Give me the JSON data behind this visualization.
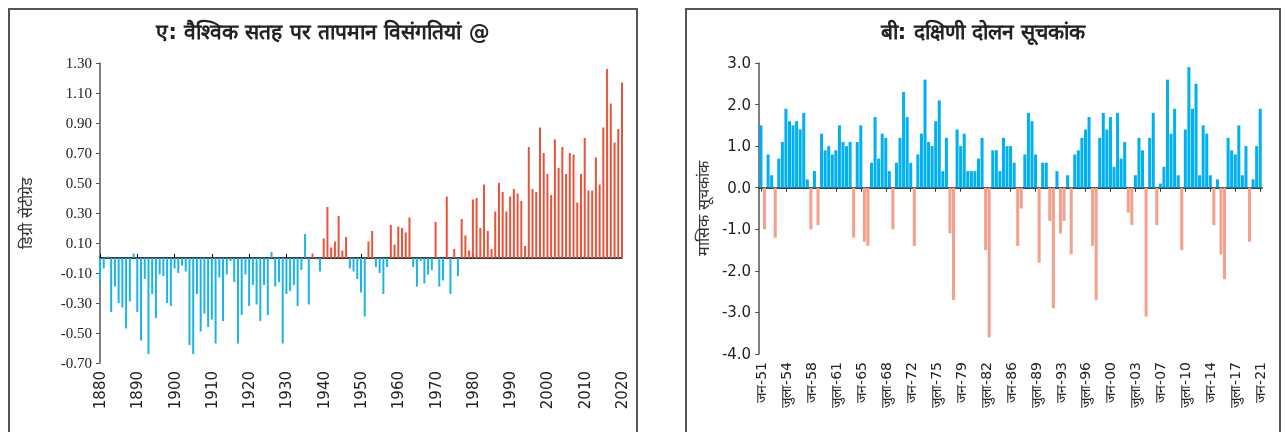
{
  "chart_data": [
    {
      "type": "bar",
      "title": "ए: वैश्विक सतह पर तापमान विसंगतियां @",
      "ylabel": "डिग्री सेंटीग्रेड",
      "x": [
        1880,
        1881,
        1882,
        1883,
        1884,
        1885,
        1886,
        1887,
        1888,
        1889,
        1890,
        1891,
        1892,
        1893,
        1894,
        1895,
        1896,
        1897,
        1898,
        1899,
        1900,
        1901,
        1902,
        1903,
        1904,
        1905,
        1906,
        1907,
        1908,
        1909,
        1910,
        1911,
        1912,
        1913,
        1914,
        1915,
        1916,
        1917,
        1918,
        1919,
        1920,
        1921,
        1922,
        1923,
        1924,
        1925,
        1926,
        1927,
        1928,
        1929,
        1930,
        1931,
        1932,
        1933,
        1934,
        1935,
        1936,
        1937,
        1938,
        1939,
        1940,
        1941,
        1942,
        1943,
        1944,
        1945,
        1946,
        1947,
        1948,
        1949,
        1950,
        1951,
        1952,
        1953,
        1954,
        1955,
        1956,
        1957,
        1958,
        1959,
        1960,
        1961,
        1962,
        1963,
        1964,
        1965,
        1966,
        1967,
        1968,
        1969,
        1970,
        1971,
        1972,
        1973,
        1974,
        1975,
        1976,
        1977,
        1978,
        1979,
        1980,
        1981,
        1982,
        1983,
        1984,
        1985,
        1986,
        1987,
        1988,
        1989,
        1990,
        1991,
        1992,
        1993,
        1994,
        1995,
        1996,
        1997,
        1998,
        1999,
        2000,
        2001,
        2002,
        2003,
        2004,
        2005,
        2006,
        2007,
        2008,
        2009,
        2010,
        2011,
        2012,
        2013,
        2014,
        2015,
        2016,
        2017,
        2018,
        2019,
        2020
      ],
      "values": [
        -0.15,
        -0.07,
        0.01,
        -0.36,
        -0.19,
        -0.3,
        -0.33,
        -0.47,
        -0.29,
        0.03,
        -0.36,
        -0.55,
        -0.14,
        -0.64,
        -0.24,
        -0.4,
        -0.11,
        -0.12,
        -0.3,
        -0.32,
        -0.07,
        -0.1,
        -0.05,
        -0.09,
        -0.58,
        -0.64,
        -0.24,
        -0.49,
        -0.37,
        -0.46,
        -0.41,
        -0.57,
        -0.13,
        -0.42,
        -0.11,
        -0.02,
        -0.16,
        -0.57,
        -0.38,
        -0.11,
        -0.32,
        -0.18,
        -0.31,
        -0.42,
        -0.18,
        -0.38,
        0.04,
        -0.19,
        -0.16,
        -0.57,
        -0.24,
        -0.22,
        -0.18,
        -0.32,
        -0.08,
        0.16,
        -0.31,
        0.03,
        -0.01,
        -0.09,
        0.13,
        0.34,
        0.07,
        0.11,
        0.28,
        0.05,
        0.14,
        -0.07,
        -0.09,
        -0.14,
        -0.23,
        -0.39,
        0.11,
        0.18,
        -0.06,
        -0.1,
        -0.24,
        -0.06,
        0.22,
        0.09,
        0.21,
        0.2,
        0.17,
        0.27,
        -0.06,
        -0.19,
        -0.02,
        -0.17,
        -0.11,
        -0.08,
        0.24,
        -0.19,
        -0.15,
        0.41,
        -0.24,
        0.06,
        -0.12,
        0.26,
        0.15,
        0.05,
        0.39,
        0.4,
        0.2,
        0.49,
        0.18,
        0.06,
        0.31,
        0.5,
        0.44,
        0.31,
        0.41,
        0.46,
        0.43,
        0.38,
        0.08,
        0.74,
        0.46,
        0.44,
        0.87,
        0.7,
        0.56,
        0.42,
        0.79,
        0.6,
        0.74,
        0.56,
        0.7,
        0.69,
        0.37,
        0.56,
        0.8,
        0.45,
        0.45,
        0.67,
        0.49,
        0.87,
        1.26,
        1.03,
        0.77,
        0.86,
        1.17
      ],
      "colors": [
        "#1ab4e6",
        "#1ab4e6",
        "#1ab4e6",
        "#1ab4e6",
        "#1ab4e6",
        "#1ab4e6",
        "#1ab4e6",
        "#1ab4e6",
        "#1ab4e6",
        "#1ab4e6",
        "#1ab4e6",
        "#1ab4e6",
        "#1ab4e6",
        "#1ab4e6",
        "#1ab4e6",
        "#1ab4e6",
        "#1ab4e6",
        "#1ab4e6",
        "#1ab4e6",
        "#1ab4e6",
        "#1ab4e6",
        "#1ab4e6",
        "#1ab4e6",
        "#1ab4e6",
        "#1ab4e6",
        "#1ab4e6",
        "#1ab4e6",
        "#1ab4e6",
        "#1ab4e6",
        "#1ab4e6",
        "#1ab4e6",
        "#1ab4e6",
        "#1ab4e6",
        "#1ab4e6",
        "#1ab4e6",
        "#1ab4e6",
        "#1ab4e6",
        "#1ab4e6",
        "#1ab4e6",
        "#1ab4e6",
        "#1ab4e6",
        "#1ab4e6",
        "#1ab4e6",
        "#1ab4e6",
        "#1ab4e6",
        "#1ab4e6",
        "#1ab4e6",
        "#1ab4e6",
        "#1ab4e6",
        "#1ab4e6",
        "#1ab4e6",
        "#1ab4e6",
        "#1ab4e6",
        "#1ab4e6",
        "#1ab4e6",
        "#1ab4e6",
        "#1ab4e6",
        "#e8533a",
        "#1ab4e6",
        "#1ab4e6",
        "#e8533a",
        "#e8533a",
        "#e8533a",
        "#e8533a",
        "#e8533a",
        "#e8533a",
        "#e8533a",
        "#1ab4e6",
        "#1ab4e6",
        "#1ab4e6",
        "#1ab4e6",
        "#1ab4e6",
        "#e8533a",
        "#e8533a",
        "#1ab4e6",
        "#1ab4e6",
        "#1ab4e6",
        "#1ab4e6",
        "#e8533a",
        "#e8533a",
        "#e8533a",
        "#e8533a",
        "#e8533a",
        "#e8533a",
        "#1ab4e6",
        "#1ab4e6",
        "#1ab4e6",
        "#1ab4e6",
        "#1ab4e6",
        "#1ab4e6",
        "#e8533a",
        "#1ab4e6",
        "#1ab4e6",
        "#e8533a",
        "#1ab4e6",
        "#e8533a",
        "#1ab4e6",
        "#e8533a",
        "#e8533a",
        "#e8533a",
        "#e8533a",
        "#e8533a",
        "#e8533a",
        "#e8533a",
        "#e8533a",
        "#e8533a",
        "#e8533a",
        "#e8533a",
        "#e8533a",
        "#e8533a",
        "#e8533a",
        "#e8533a",
        "#e8533a",
        "#e8533a",
        "#e8533a",
        "#e8533a",
        "#e8533a",
        "#e8533a",
        "#e8533a",
        "#e8533a",
        "#e8533a",
        "#e8533a",
        "#e8533a",
        "#e8533a",
        "#e8533a",
        "#e8533a",
        "#e8533a",
        "#e8533a",
        "#e8533a",
        "#e8533a",
        "#e8533a",
        "#e8533a",
        "#e8533a",
        "#e8533a",
        "#e8533a",
        "#e8533a",
        "#e8533a",
        "#e8533a",
        "#e8533a",
        "#e8533a",
        "#e8533a"
      ],
      "xlim": [
        1880,
        2020
      ],
      "xticks": [
        1880,
        1890,
        1900,
        1910,
        1920,
        1930,
        1940,
        1950,
        1960,
        1970,
        1980,
        1990,
        2000,
        2010,
        2020
      ],
      "ylim": [
        -0.7,
        1.3
      ],
      "yticks": [
        {
          "value": -0.7,
          "label": "-0.70"
        },
        {
          "value": -0.5,
          "label": "-0.50"
        },
        {
          "value": -0.3,
          "label": "-0.30"
        },
        {
          "value": -0.1,
          "label": "-0.10"
        },
        {
          "value": 0.1,
          "label": "0.10"
        },
        {
          "value": 0.3,
          "label": "0.30"
        },
        {
          "value": 0.5,
          "label": "0.50"
        },
        {
          "value": 0.7,
          "label": "0.70"
        },
        {
          "value": 0.9,
          "label": "0.90"
        },
        {
          "value": 1.1,
          "label": "1.10"
        },
        {
          "value": 1.3,
          "label": "1.30"
        }
      ],
      "tick_labels": true
    },
    {
      "type": "bar",
      "title": "बी: दक्षिणी दोलन सूचकांक",
      "ylabel": "मासिक सूचकांक",
      "categories": [
        "जन-51",
        null,
        null,
        null,
        null,
        null,
        null,
        "जुला-54",
        null,
        null,
        null,
        null,
        null,
        null,
        "जन-58",
        null,
        null,
        null,
        null,
        null,
        null,
        "जुला-61",
        null,
        null,
        null,
        null,
        null,
        null,
        "जन-65",
        null,
        null,
        null,
        null,
        null,
        null,
        "जुला-68",
        null,
        null,
        null,
        null,
        null,
        null,
        "जन-72",
        null,
        null,
        null,
        null,
        null,
        null,
        "जुला-75",
        null,
        null,
        null,
        null,
        null,
        null,
        "जन-79",
        null,
        null,
        null,
        null,
        null,
        null,
        "जुला-82",
        null,
        null,
        null,
        null,
        null,
        null,
        "जन-86",
        null,
        null,
        null,
        null,
        null,
        null,
        "जुला-89",
        null,
        null,
        null,
        null,
        null,
        null,
        "जन-93",
        null,
        null,
        null,
        null,
        null,
        null,
        "जुला-96",
        null,
        null,
        null,
        null,
        null,
        null,
        "जन-00",
        null,
        null,
        null,
        null,
        null,
        null,
        "जुला-03",
        null,
        null,
        null,
        null,
        null,
        null,
        "जन-07",
        null,
        null,
        null,
        null,
        null,
        null,
        "जुला-10",
        null,
        null,
        null,
        null,
        null,
        null,
        "जन-14",
        null,
        null,
        null,
        null,
        null,
        null,
        "जुला-17",
        null,
        null,
        null,
        null,
        null,
        null,
        "जन-21"
      ],
      "values": [
        1.5,
        -1.0,
        0.8,
        0.3,
        -1.2,
        0.7,
        1.1,
        1.9,
        1.6,
        1.5,
        1.6,
        1.4,
        1.8,
        0.2,
        -1.0,
        0.4,
        -0.9,
        1.3,
        0.9,
        1.0,
        0.8,
        0.9,
        1.5,
        1.1,
        1.0,
        1.1,
        -1.2,
        1.1,
        1.5,
        -1.3,
        -1.4,
        0.6,
        1.7,
        0.7,
        1.3,
        1.2,
        0.4,
        -1.0,
        0.6,
        1.2,
        2.3,
        1.7,
        0.6,
        -1.4,
        0.8,
        1.3,
        2.6,
        1.1,
        1.0,
        1.6,
        2.1,
        0.4,
        1.2,
        -1.1,
        -2.7,
        1.4,
        1.0,
        1.3,
        0.4,
        0.4,
        0.4,
        0.7,
        1.2,
        -1.5,
        -3.6,
        0.9,
        0.9,
        0.4,
        1.2,
        1.0,
        1.0,
        0.6,
        -1.4,
        -0.5,
        0.8,
        1.8,
        1.6,
        0.8,
        -1.8,
        0.6,
        0.6,
        -0.8,
        -2.9,
        0.4,
        -1.1,
        -0.8,
        0.3,
        -1.6,
        0.8,
        0.9,
        1.2,
        1.4,
        1.7,
        -1.4,
        -2.7,
        1.2,
        1.8,
        1.4,
        1.7,
        0.5,
        1.8,
        0.7,
        1.1,
        -0.6,
        -0.9,
        0.3,
        1.2,
        0.9,
        -3.1,
        1.2,
        1.8,
        -0.9,
        0.1,
        0.5,
        2.6,
        1.3,
        1.9,
        0.3,
        -1.5,
        1.4,
        2.9,
        1.9,
        2.5,
        0.3,
        1.5,
        1.3,
        0.3,
        -0.9,
        0.2,
        -1.6,
        -2.2,
        1.2,
        0.9,
        0.8,
        1.5,
        0.3,
        1.0,
        -1.3,
        0.2,
        1.0,
        1.9
      ],
      "colors": [
        "#00b0f0",
        "#f4a08c",
        "#00b0f0",
        "#00b0f0",
        "#f4a08c",
        "#00b0f0",
        "#00b0f0",
        "#00b0f0",
        "#00b0f0",
        "#00b0f0",
        "#00b0f0",
        "#00b0f0",
        "#00b0f0",
        "#00b0f0",
        "#f4a08c",
        "#00b0f0",
        "#f4a08c",
        "#00b0f0",
        "#00b0f0",
        "#00b0f0",
        "#00b0f0",
        "#00b0f0",
        "#00b0f0",
        "#00b0f0",
        "#00b0f0",
        "#00b0f0",
        "#f4a08c",
        "#00b0f0",
        "#00b0f0",
        "#f4a08c",
        "#f4a08c",
        "#00b0f0",
        "#00b0f0",
        "#00b0f0",
        "#00b0f0",
        "#00b0f0",
        "#00b0f0",
        "#f4a08c",
        "#00b0f0",
        "#00b0f0",
        "#00b0f0",
        "#00b0f0",
        "#00b0f0",
        "#f4a08c",
        "#00b0f0",
        "#00b0f0",
        "#00b0f0",
        "#00b0f0",
        "#00b0f0",
        "#00b0f0",
        "#00b0f0",
        "#00b0f0",
        "#00b0f0",
        "#f4a08c",
        "#f4a08c",
        "#00b0f0",
        "#00b0f0",
        "#00b0f0",
        "#00b0f0",
        "#00b0f0",
        "#00b0f0",
        "#00b0f0",
        "#00b0f0",
        "#f4a08c",
        "#f4a08c",
        "#00b0f0",
        "#00b0f0",
        "#00b0f0",
        "#00b0f0",
        "#00b0f0",
        "#00b0f0",
        "#00b0f0",
        "#f4a08c",
        "#f4a08c",
        "#00b0f0",
        "#00b0f0",
        "#00b0f0",
        "#00b0f0",
        "#f4a08c",
        "#00b0f0",
        "#00b0f0",
        "#f4a08c",
        "#f4a08c",
        "#00b0f0",
        "#f4a08c",
        "#f4a08c",
        "#00b0f0",
        "#f4a08c",
        "#00b0f0",
        "#00b0f0",
        "#00b0f0",
        "#00b0f0",
        "#00b0f0",
        "#f4a08c",
        "#f4a08c",
        "#00b0f0",
        "#00b0f0",
        "#00b0f0",
        "#00b0f0",
        "#00b0f0",
        "#00b0f0",
        "#00b0f0",
        "#00b0f0",
        "#f4a08c",
        "#f4a08c",
        "#00b0f0",
        "#00b0f0",
        "#00b0f0",
        "#f4a08c",
        "#00b0f0",
        "#00b0f0",
        "#f4a08c",
        "#00b0f0",
        "#00b0f0",
        "#00b0f0",
        "#00b0f0",
        "#00b0f0",
        "#00b0f0",
        "#f4a08c",
        "#00b0f0",
        "#00b0f0",
        "#00b0f0",
        "#00b0f0",
        "#00b0f0",
        "#00b0f0",
        "#00b0f0",
        "#00b0f0",
        "#f4a08c",
        "#00b0f0",
        "#f4a08c",
        "#f4a08c",
        "#00b0f0",
        "#00b0f0",
        "#00b0f0",
        "#00b0f0",
        "#00b0f0",
        "#00b0f0",
        "#f4a08c",
        "#00b0f0",
        "#00b0f0",
        "#00b0f0"
      ],
      "ylim": [
        -4,
        3
      ],
      "yticks": [
        {
          "value": -4,
          "label": "-4.0"
        },
        {
          "value": -3,
          "label": "-3.0"
        },
        {
          "value": -2,
          "label": "-2.0"
        },
        {
          "value": -1,
          "label": "-1.0"
        },
        {
          "value": 0,
          "label": "0.0"
        },
        {
          "value": 1,
          "label": "1.0"
        },
        {
          "value": 2,
          "label": "2.0"
        },
        {
          "value": 3,
          "label": "3.0"
        }
      ],
      "tick_labels": true
    }
  ]
}
